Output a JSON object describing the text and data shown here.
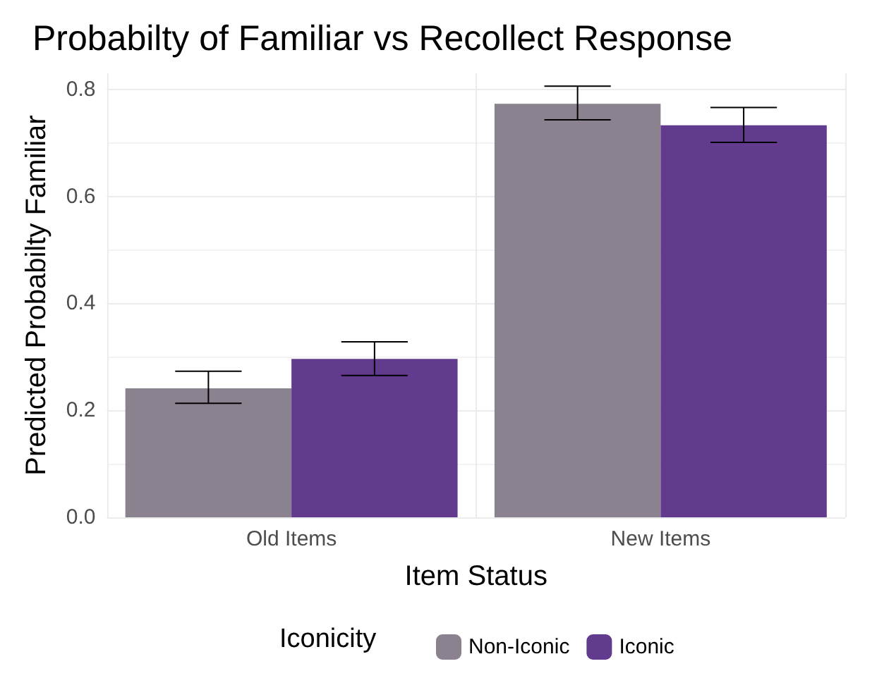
{
  "chart_data": {
    "type": "bar",
    "title": "Probabilty of Familiar vs Recollect Response",
    "xlabel": "Item Status",
    "ylabel": "Predicted Probabilty Familiar",
    "legend_title": "Iconicity",
    "categories": [
      "Old Items",
      "New Items"
    ],
    "series": [
      {
        "name": "Non-Iconic",
        "color": "#8a838f",
        "values": [
          0.241,
          0.773
        ],
        "errors": [
          [
            0.213,
            0.273
          ],
          [
            0.743,
            0.806
          ]
        ]
      },
      {
        "name": "Iconic",
        "color": "#623b8f",
        "values": [
          0.296,
          0.733
        ],
        "errors": [
          [
            0.265,
            0.328
          ],
          [
            0.701,
            0.766
          ]
        ]
      }
    ],
    "ylim": [
      0,
      0.83
    ],
    "yticks": [
      {
        "value": 0,
        "label": "0.0"
      },
      {
        "value": 0.2,
        "label": "0.2"
      },
      {
        "value": 0.4,
        "label": "0.4"
      },
      {
        "value": 0.6,
        "label": "0.6"
      },
      {
        "value": 0.8,
        "label": "0.8"
      }
    ],
    "grid": true,
    "legend": "bottom"
  }
}
